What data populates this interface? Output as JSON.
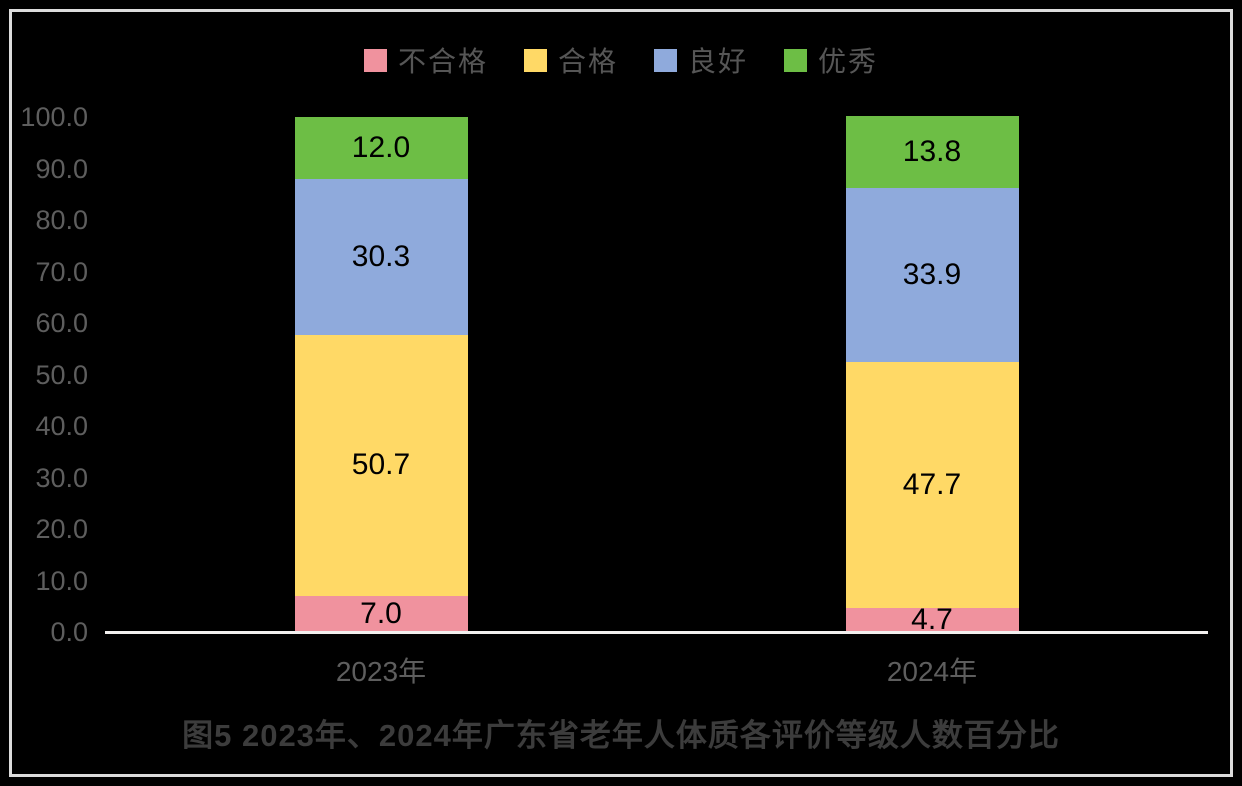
{
  "chart_data": {
    "type": "bar",
    "subtype": "stacked-column",
    "title": "图5  2023年、2024年广东省老年人体质各评价等级人数百分比",
    "categories": [
      "2023年",
      "2024年"
    ],
    "series": [
      {
        "name": "不合格",
        "color": "#F0929E",
        "values": [
          7.0,
          4.7
        ]
      },
      {
        "name": "合格",
        "color": "#FFD966",
        "values": [
          50.7,
          47.7
        ]
      },
      {
        "name": "良好",
        "color": "#8FAADC",
        "values": [
          30.3,
          33.9
        ]
      },
      {
        "name": "优秀",
        "color": "#6DBE45",
        "values": [
          12.0,
          13.8
        ]
      }
    ],
    "ylim": [
      0,
      100
    ],
    "yticks": [
      0,
      10,
      20,
      30,
      40,
      50,
      60,
      70,
      80,
      90,
      100
    ],
    "ytick_labels": [
      "0.0",
      "10.0",
      "20.0",
      "30.0",
      "40.0",
      "50.0",
      "60.0",
      "70.0",
      "80.0",
      "90.0",
      "100.0"
    ],
    "data_labels": [
      "7.0",
      "50.7",
      "30.3",
      "12.0",
      "4.7",
      "47.7",
      "33.9",
      "13.8"
    ],
    "legend_position": "top",
    "gridlines": false
  },
  "style": {
    "background": "#000000",
    "frame_border": "#DCDCDC",
    "axis_line": "#F2F0EF",
    "axis_label_color": "#5E5E5E",
    "legend_text_color": "#565656",
    "title_color": "#3C3C3C",
    "data_label_color": "#000000"
  }
}
